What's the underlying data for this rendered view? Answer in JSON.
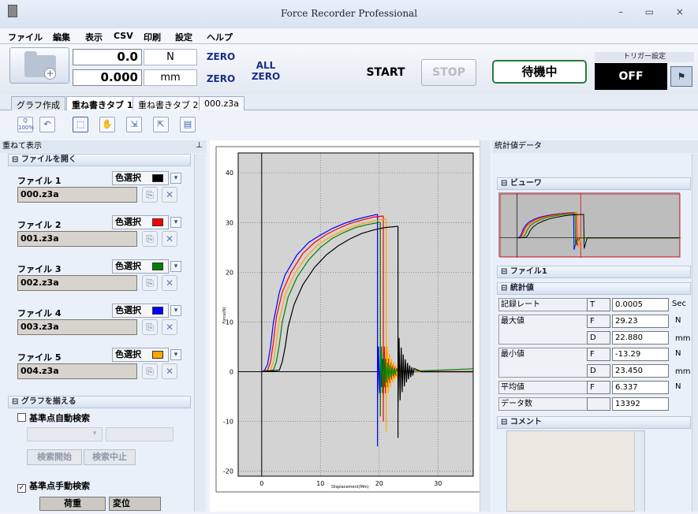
{
  "app": {
    "title": "Force Recorder Professional"
  },
  "menu": [
    "ファイル",
    "編集",
    "表示",
    "CSV",
    "印刷",
    "設定",
    "ヘルプ"
  ],
  "toolbar": {
    "force_value": "0.0",
    "force_unit": "N",
    "disp_value": "0.000",
    "disp_unit": "mm",
    "zero_label": "ZERO",
    "all_zero_top": "ALL",
    "all_zero_bottom": "ZERO",
    "start_label": "START",
    "stop_label": "STOP",
    "status_label": "待機中",
    "trigger_title": "トリガー設定",
    "trigger_value": "OFF"
  },
  "tabs": [
    "グラフ作成",
    "重ね書きタブ 1",
    "重ね書きタブ 2",
    "000.z3a"
  ],
  "tools": [
    "Q 100%",
    "↶",
    "⬚",
    "✋",
    "⇲",
    "⇱",
    "▤"
  ],
  "left": {
    "panel_title": "重ねて表示",
    "open_section": "ファイルを開く",
    "color_select": "色選択",
    "files": [
      {
        "label": "ファイル 1",
        "name": "000.z3a",
        "color": "#000000"
      },
      {
        "label": "ファイル 2",
        "name": "001.z3a",
        "color": "#ff0000"
      },
      {
        "label": "ファイル 3",
        "name": "002.z3a",
        "color": "#008000"
      },
      {
        "label": "ファイル 4",
        "name": "003.z3a",
        "color": "#0000ff"
      },
      {
        "label": "ファイル 5",
        "name": "004.z3a",
        "color": "#ffa500"
      }
    ],
    "align_section": "グラフを揃える",
    "auto_search": "基準点自動検索",
    "search_start": "検索開始",
    "search_stop": "検索中止",
    "manual_search": "基準点手動検索",
    "load_label": "荷重",
    "disp_label": "変位"
  },
  "right": {
    "panel_title": "統計値データ",
    "viewer_section": "ビューワ",
    "file_section": "ファイル1",
    "stats_section": "統計値",
    "stats": {
      "rate_label": "記録レート",
      "rate_code": "T",
      "rate_value": "0.0005",
      "rate_unit": "Sec",
      "max_label": "最大値",
      "max_f_code": "F",
      "max_f_value": "29.23",
      "max_f_unit": "N",
      "max_d_code": "D",
      "max_d_value": "22.880",
      "max_d_unit": "mm",
      "min_label": "最小値",
      "min_f_code": "F",
      "min_f_value": "-13.29",
      "min_f_unit": "N",
      "min_d_code": "D",
      "min_d_value": "23.450",
      "min_d_unit": "mm",
      "avg_label": "平均値",
      "avg_code": "F",
      "avg_value": "6.337",
      "avg_unit": "N",
      "count_label": "データ数",
      "count_value": "13392"
    },
    "comment_section": "コメント"
  },
  "chart_data": {
    "type": "line",
    "xlabel": "Displacement(Mm)",
    "ylabel": "Force(N)",
    "xlim": [
      -4,
      36
    ],
    "ylim": [
      -21,
      44
    ],
    "xticks": [
      0,
      10,
      20,
      30
    ],
    "yticks": [
      -20,
      -10,
      0,
      10,
      20,
      30,
      40
    ],
    "grid": true,
    "series": [
      {
        "color": "#0000ff",
        "x": [
          0,
          0.5,
          1,
          1.5,
          2,
          3,
          4,
          6,
          8,
          10,
          12,
          14,
          16,
          18,
          19.5
        ],
        "y": [
          0,
          0.3,
          1.5,
          5,
          10,
          16,
          19.5,
          23.5,
          26,
          27.5,
          28.8,
          29.8,
          30.6,
          31.2,
          31.6
        ]
      },
      {
        "color": "#ff0000",
        "x": [
          0,
          1,
          1.5,
          2,
          2.5,
          3.5,
          5,
          7,
          9,
          11,
          13,
          15,
          17,
          19,
          20.5
        ],
        "y": [
          0,
          0.3,
          2,
          6,
          11,
          16,
          20,
          23.8,
          26,
          27.6,
          28.8,
          29.8,
          30.5,
          31.1,
          31.3
        ]
      },
      {
        "color": "#ffa500",
        "x": [
          0,
          1.5,
          2,
          2.5,
          3,
          4,
          5.5,
          7.5,
          9.5,
          11.5,
          13.5,
          15.5,
          17.5,
          19.5,
          21
        ],
        "y": [
          0,
          0.3,
          2,
          6,
          10.5,
          15.5,
          19.5,
          23,
          25.5,
          27,
          28.2,
          29.2,
          29.9,
          30.4,
          30.7
        ]
      },
      {
        "color": "#008000",
        "x": [
          0,
          2,
          2.5,
          3,
          3.5,
          4.5,
          6,
          8,
          10,
          12,
          14,
          16,
          18,
          20
        ],
        "y": [
          0,
          0.3,
          2,
          5.5,
          10,
          15,
          19,
          22.5,
          25,
          26.8,
          28,
          29,
          29.6,
          30
        ]
      },
      {
        "color": "#000000",
        "x": [
          0,
          3,
          3.5,
          4,
          4.5,
          5.5,
          7,
          9,
          11,
          13,
          15,
          17,
          19,
          21,
          23
        ],
        "y": [
          0,
          0.3,
          2,
          5,
          9,
          13.5,
          17.5,
          21,
          23.5,
          25.3,
          26.7,
          27.8,
          28.5,
          29,
          29.23
        ]
      }
    ]
  }
}
